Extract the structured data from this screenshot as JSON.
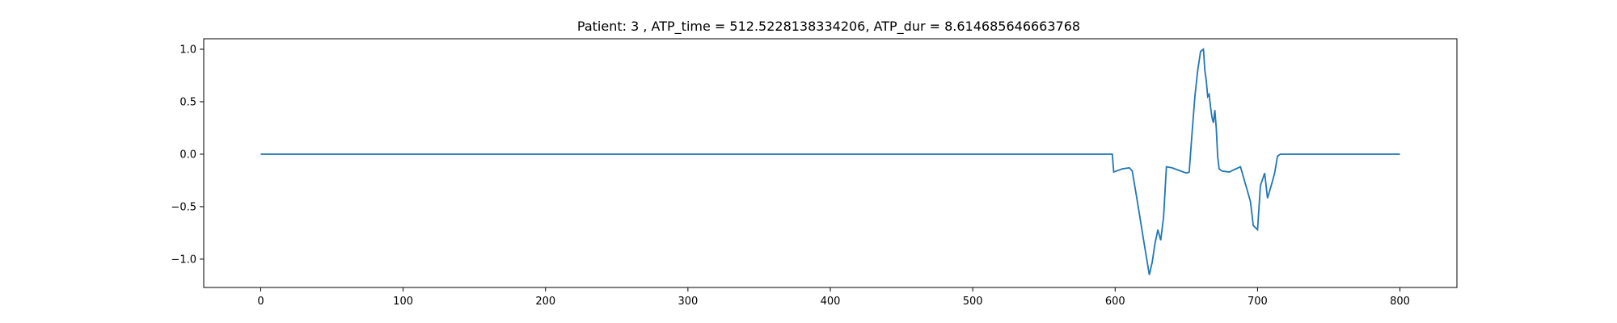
{
  "chart_data": {
    "type": "line",
    "title": "Patient: 3 , ATP_time = 512.5228138334206, ATP_dur = 8.614685646663768",
    "xlabel": "",
    "ylabel": "",
    "xlim": [
      -40,
      840
    ],
    "ylim": [
      -1.27,
      1.1
    ],
    "xticks": [
      0,
      100,
      200,
      300,
      400,
      500,
      600,
      700,
      800
    ],
    "yticks": [
      1.0,
      0.5,
      0.0,
      -0.5,
      -1.0
    ],
    "xtick_labels": [
      "0",
      "100",
      "200",
      "300",
      "400",
      "500",
      "600",
      "700",
      "800"
    ],
    "ytick_labels": [
      "1.0",
      "0.5",
      "0.0",
      "−0.5",
      "−1.0"
    ],
    "grid": false,
    "series": [
      {
        "color": "#1f77b4",
        "x": [
          0,
          598,
          599,
          605,
          610,
          612,
          615,
          620,
          624,
          626,
          628,
          630,
          632,
          634,
          636,
          640,
          646,
          650,
          652,
          654,
          656,
          658,
          660,
          662,
          663,
          664,
          665,
          666,
          667,
          668,
          669,
          670,
          671,
          672,
          673,
          675,
          680,
          688,
          695,
          697,
          700,
          702,
          705,
          707,
          710,
          712,
          714,
          716,
          720,
          800
        ],
        "y": [
          0,
          0,
          -0.17,
          -0.14,
          -0.13,
          -0.16,
          -0.4,
          -0.82,
          -1.15,
          -1.03,
          -0.85,
          -0.72,
          -0.82,
          -0.6,
          -0.12,
          -0.13,
          -0.16,
          -0.18,
          -0.17,
          0.2,
          0.55,
          0.8,
          0.98,
          1.0,
          0.8,
          0.7,
          0.55,
          0.57,
          0.45,
          0.35,
          0.3,
          0.42,
          0.25,
          -0.02,
          -0.14,
          -0.16,
          -0.17,
          -0.12,
          -0.45,
          -0.68,
          -0.72,
          -0.3,
          -0.18,
          -0.42,
          -0.28,
          -0.18,
          -0.02,
          0,
          0,
          0
        ]
      }
    ]
  }
}
